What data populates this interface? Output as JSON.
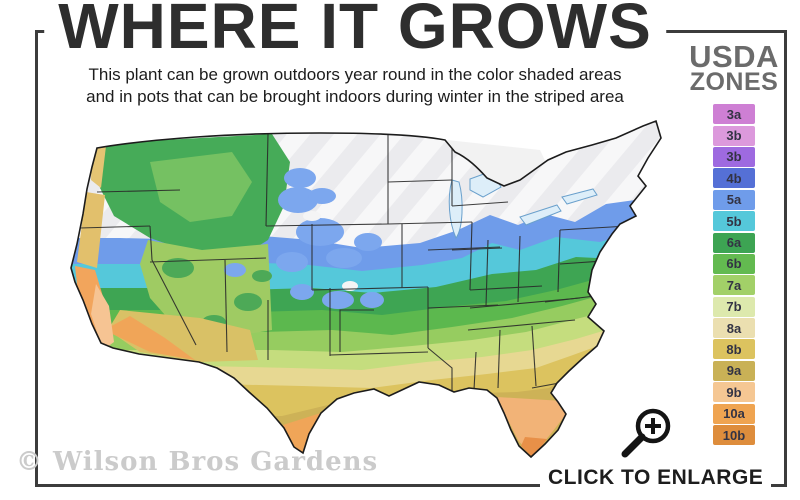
{
  "header": {
    "title": "WHERE IT GROWS",
    "subtitle_line1": "This plant can be grown outdoors year round in the color shaded areas",
    "subtitle_line2": "and in pots that can be brought indoors during winter in the striped area"
  },
  "legend": {
    "title_line1": "USDA",
    "title_line2": "ZONES",
    "zones": [
      {
        "label": "3a",
        "color": "#ce7fd4"
      },
      {
        "label": "3b",
        "color": "#dc99dc"
      },
      {
        "label": "3b",
        "color": "#9e6ae0"
      },
      {
        "label": "4b",
        "color": "#5570d6"
      },
      {
        "label": "5a",
        "color": "#6f9cea"
      },
      {
        "label": "5b",
        "color": "#55c8da"
      },
      {
        "label": "6a",
        "color": "#3da453"
      },
      {
        "label": "6b",
        "color": "#63ba50"
      },
      {
        "label": "7a",
        "color": "#a2d068"
      },
      {
        "label": "7b",
        "color": "#dde9ad"
      },
      {
        "label": "8a",
        "color": "#ebdfb0"
      },
      {
        "label": "8b",
        "color": "#dcc35f"
      },
      {
        "label": "9a",
        "color": "#c9b156"
      },
      {
        "label": "9b",
        "color": "#f5c793"
      },
      {
        "label": "10a",
        "color": "#efa451"
      },
      {
        "label": "10b",
        "color": "#de8d3c"
      }
    ]
  },
  "footer": {
    "watermark": "© Wilson Bros Gardens",
    "enlarge_label": "CLICK TO ENLARGE",
    "enlarge_icon": "magnifier-plus-icon"
  }
}
